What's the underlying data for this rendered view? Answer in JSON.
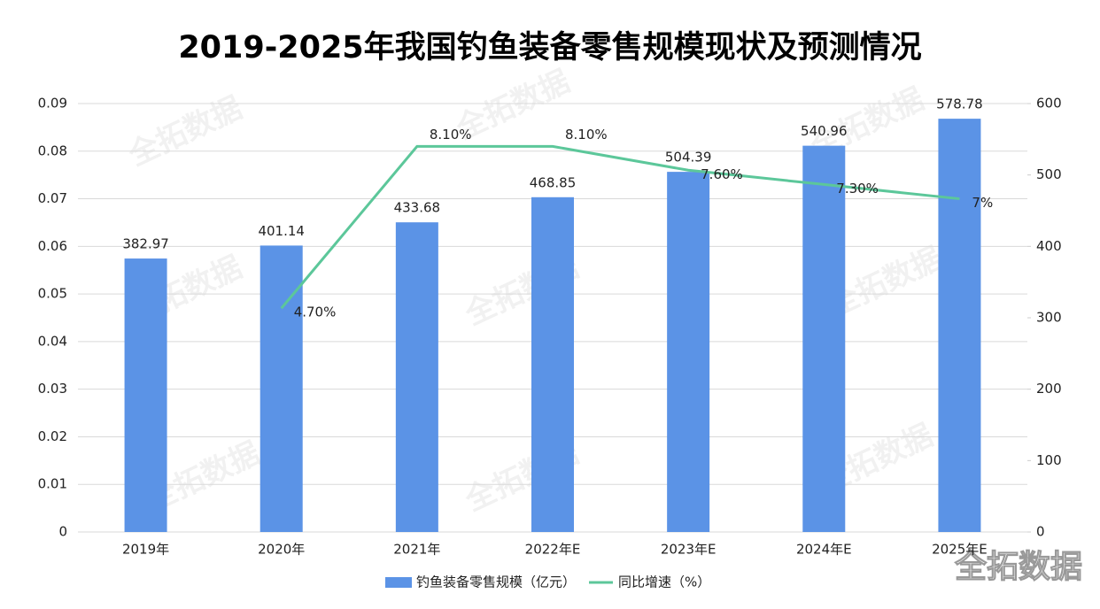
{
  "chart_data": {
    "type": "bar-line",
    "title": "2019-2025年我国钓鱼装备零售规模现状及预测情况",
    "watermark": "全拓数据",
    "categories": [
      "2019年",
      "2020年",
      "2021年",
      "2022年E",
      "2023年E",
      "2024年E",
      "2025年E"
    ],
    "series": [
      {
        "name": "钓鱼装备零售规模（亿元）",
        "type": "bar",
        "axis": "y2",
        "color": "#5b93e6",
        "values": [
          382.97,
          401.14,
          433.68,
          468.85,
          504.39,
          540.96,
          578.78
        ]
      },
      {
        "name": "同比增速（%）",
        "type": "line",
        "color": "#5cc79a",
        "values": [
          null,
          0.047,
          0.081,
          0.081,
          0.076,
          0.073,
          0.07
        ],
        "value_labels": [
          null,
          "4.70%",
          "8.10%",
          "8.10%",
          "7.60%",
          "7.30%",
          "7%"
        ]
      }
    ],
    "ylim": [
      0,
      0.09
    ],
    "yticks": [
      0,
      0.01,
      0.02,
      0.03,
      0.04,
      0.05,
      0.06,
      0.07,
      0.08,
      0.09
    ],
    "y2lim": [
      0,
      600
    ],
    "y2ticks": [
      0,
      100,
      200,
      300,
      400,
      500,
      600
    ],
    "grid": true,
    "legend": "bottom"
  }
}
